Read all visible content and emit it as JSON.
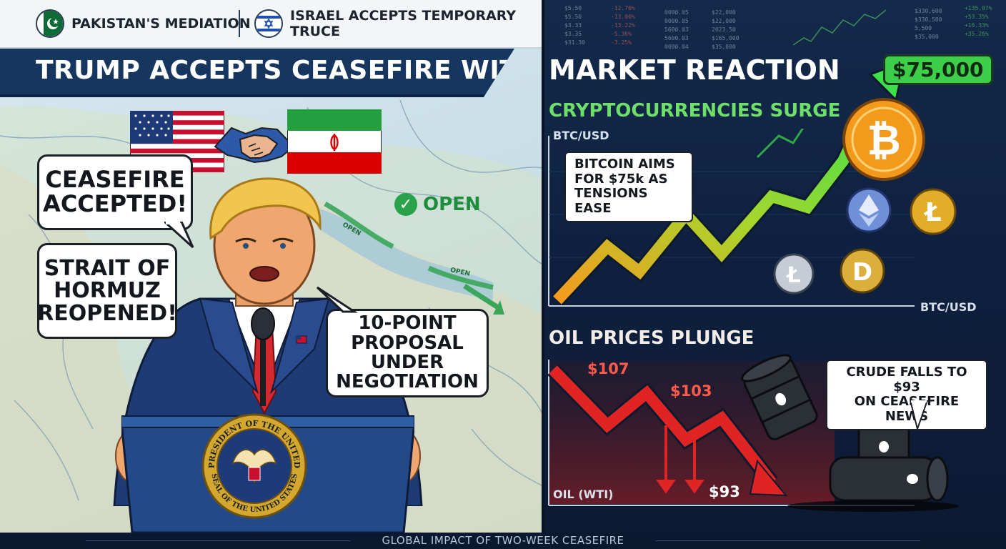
{
  "top_tags": {
    "left": "PAKISTAN'S MEDIATION",
    "right": "ISRAEL ACCEPTS TEMPORARY TRUCE"
  },
  "headline": "TRUMP ACCEPTS CEASEFIRE WITH IRAN",
  "speech_bubbles": {
    "ceasefire_line1": "CEASEFIRE",
    "ceasefire_line2": "ACCEPTED!",
    "hormuz_line1": "STRAIT OF",
    "hormuz_line2": "HORMUZ",
    "hormuz_line3": "REOPENED!",
    "proposal_line1": "10-POINT",
    "proposal_line2": "PROPOSAL UNDER",
    "proposal_line3": "NEGOTIATION"
  },
  "map": {
    "open_label": "OPEN",
    "route_label_1": "OPEN",
    "route_label_2": "OPEN"
  },
  "seal": {
    "top_text": "PRESIDENT OF THE UNITED",
    "bottom_text": "SEAL OF THE UNITED STATES"
  },
  "market": {
    "title": "MARKET REACTION",
    "crypto_title": "CRYPTOCURRENCIES SURGE",
    "btc_axis_top": "BTC/USD",
    "btc_axis_bottom": "BTC/USD",
    "bitcoin_note_line1": "BITCOIN AIMS",
    "bitcoin_note_line2": "FOR $75k AS",
    "bitcoin_note_line3": "TENSIONS EASE",
    "price_tag": "$75,000",
    "oil_title": "OIL PRICES PLUNGE",
    "oil_axis": "OIL (WTI)",
    "oil_values": [
      "$107",
      "$103",
      "$93"
    ],
    "oil_note_line1": "CRUDE FALLS TO $93",
    "oil_note_line2": "ON CEASEFIRE NEWS"
  },
  "ticker_left": [
    "-12.70%",
    "-13.00%",
    "-13.22%",
    "-5.36%",
    "-3.25%"
  ],
  "ticker_mid": [
    "0000.05",
    "0000.05",
    "5600.03",
    "5600.03",
    "0000.04"
  ],
  "ticker_mid2": [
    "$22,000",
    "$22,000",
    "2023.50",
    "$165,000",
    "$35,000"
  ],
  "ticker_right": [
    "+135.07%",
    "+53.35%",
    "+16.33%",
    "+35.26%"
  ],
  "ticker_right_prices": [
    "$330,600",
    "$330,500",
    "5,500",
    "$35,000"
  ],
  "ticker_left_prices": [
    "$5.50",
    "$5.50",
    "$3.33",
    "$3.35",
    "$31.30"
  ],
  "footer": "GLOBAL IMPACT OF TWO-WEEK CEASEFIRE",
  "colors": {
    "navy_banner": "#17365f",
    "crypto_green": "#6ee06a",
    "oil_red": "#ff5b4a",
    "price_tag_green": "#3ecf4a"
  }
}
